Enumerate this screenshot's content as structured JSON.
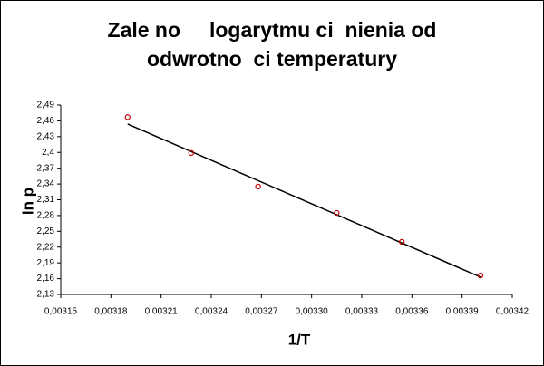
{
  "chart_data": {
    "type": "scatter",
    "title": [
      "Zale no     logarytmu ci  nienia od",
      "odwrotno  ci temperatury"
    ],
    "x_label": "1/T",
    "y_label": "ln p",
    "series": [
      {
        "color": "#c00000",
        "x": [
          0.00319,
          0.003228,
          0.003268,
          0.003315,
          0.003354,
          0.003401
        ],
        "values": [
          2.467,
          2.399,
          2.335,
          2.285,
          2.23,
          2.166
        ]
      }
    ],
    "trendline": {
      "color": "#000000",
      "x": [
        0.00319,
        0.003401
      ],
      "values": [
        2.454,
        2.163
      ]
    },
    "xlim": [
      0.00315,
      0.00342
    ],
    "xticks": [
      {
        "value": 0.00315,
        "label": "0,00315"
      },
      {
        "value": 0.00318,
        "label": "0,00318"
      },
      {
        "value": 0.00321,
        "label": "0,00321"
      },
      {
        "value": 0.00324,
        "label": "0,00324"
      },
      {
        "value": 0.00327,
        "label": "0,00327"
      },
      {
        "value": 0.0033,
        "label": "0,00330"
      },
      {
        "value": 0.00333,
        "label": "0,00333"
      },
      {
        "value": 0.00336,
        "label": "0,00336"
      },
      {
        "value": 0.00339,
        "label": "0,00339"
      },
      {
        "value": 0.00342,
        "label": "0,00342"
      }
    ],
    "ylim": [
      2.13,
      2.49
    ],
    "yticks": [
      {
        "value": 2.13,
        "label": "2,13"
      },
      {
        "value": 2.16,
        "label": "2,16"
      },
      {
        "value": 2.19,
        "label": "2,19"
      },
      {
        "value": 2.22,
        "label": "2,22"
      },
      {
        "value": 2.25,
        "label": "2,25"
      },
      {
        "value": 2.28,
        "label": "2,28"
      },
      {
        "value": 2.31,
        "label": "2,31"
      },
      {
        "value": 2.34,
        "label": "2,34"
      },
      {
        "value": 2.37,
        "label": "2,37"
      },
      {
        "value": 2.4,
        "label": "2,4"
      },
      {
        "value": 2.43,
        "label": "2,43"
      },
      {
        "value": 2.46,
        "label": "2,46"
      },
      {
        "value": 2.49,
        "label": "2,49"
      }
    ],
    "grid": false
  }
}
